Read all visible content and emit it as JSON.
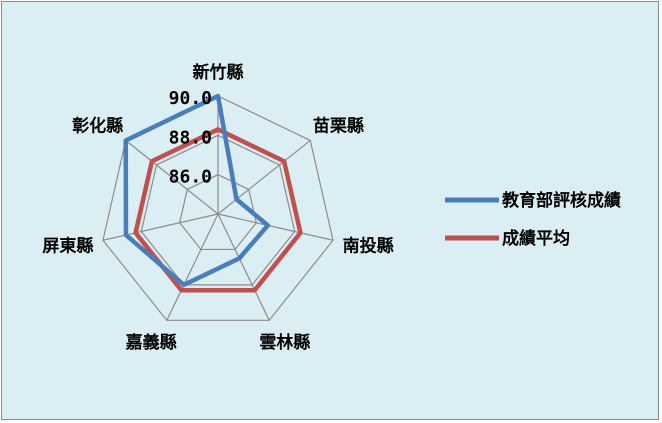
{
  "chart_data": {
    "type": "radar",
    "categories": [
      "新竹縣",
      "苗栗縣",
      "南投縣",
      "雲林縣",
      "嘉義縣",
      "屏東縣",
      "彰化縣"
    ],
    "series": [
      {
        "name": "教育部評核成績",
        "color": "#4a7ebb",
        "values": [
          90.0,
          85.2,
          86.6,
          86.5,
          88.0,
          88.8,
          90.0
        ]
      },
      {
        "name": "成績平均",
        "color": "#c0504d",
        "values": [
          88.3,
          88.3,
          88.3,
          88.3,
          88.3,
          88.3,
          88.3
        ]
      }
    ],
    "r_ticks": [
      {
        "value": 86,
        "label": "86.0"
      },
      {
        "value": 88,
        "label": "88.0"
      },
      {
        "value": 90,
        "label": "90.0"
      }
    ],
    "r_range": [
      84,
      90
    ],
    "grid": true,
    "legend_position": "right"
  }
}
